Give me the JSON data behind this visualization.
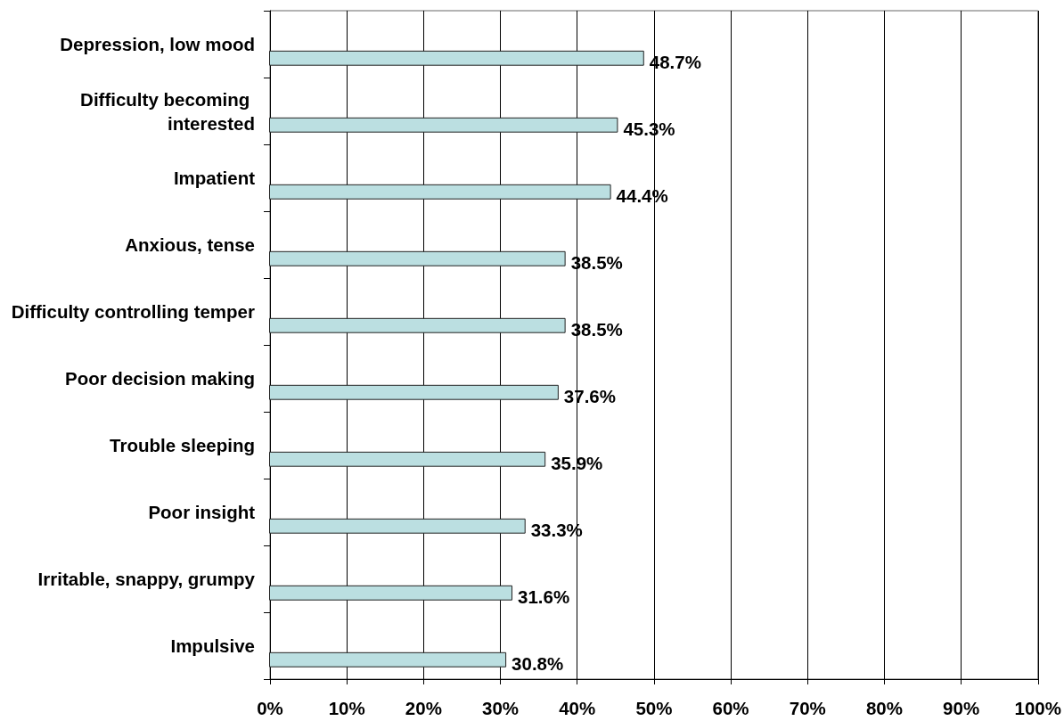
{
  "chart_data": {
    "type": "bar",
    "orientation": "horizontal",
    "categories": [
      "Depression, low mood",
      "Difficulty becoming interested",
      "Impatient",
      "Anxious, tense",
      "Difficulty controlling temper",
      "Poor decision making",
      "Trouble sleeping",
      "Poor insight",
      "Irritable, snappy, grumpy",
      "Impulsive"
    ],
    "values": [
      48.7,
      45.3,
      44.4,
      38.5,
      38.5,
      37.6,
      35.9,
      33.3,
      31.6,
      30.8
    ],
    "value_labels": [
      "48.7%",
      "45.3%",
      "44.4%",
      "38.5%",
      "38.5%",
      "37.6%",
      "35.9%",
      "33.3%",
      "31.6%",
      "30.8%"
    ],
    "color": "#bbdfe1",
    "xlim": [
      0,
      100
    ],
    "xticks": [
      {
        "value": 0,
        "label": "0%"
      },
      {
        "value": 10,
        "label": "10%"
      },
      {
        "value": 20,
        "label": "20%"
      },
      {
        "value": 30,
        "label": "30%"
      },
      {
        "value": 40,
        "label": "40%"
      },
      {
        "value": 50,
        "label": "50%"
      },
      {
        "value": 60,
        "label": "60%"
      },
      {
        "value": 70,
        "label": "70%"
      },
      {
        "value": 80,
        "label": "80%"
      },
      {
        "value": 90,
        "label": "90%"
      },
      {
        "value": 100,
        "label": "100%"
      }
    ],
    "grid": "x"
  }
}
